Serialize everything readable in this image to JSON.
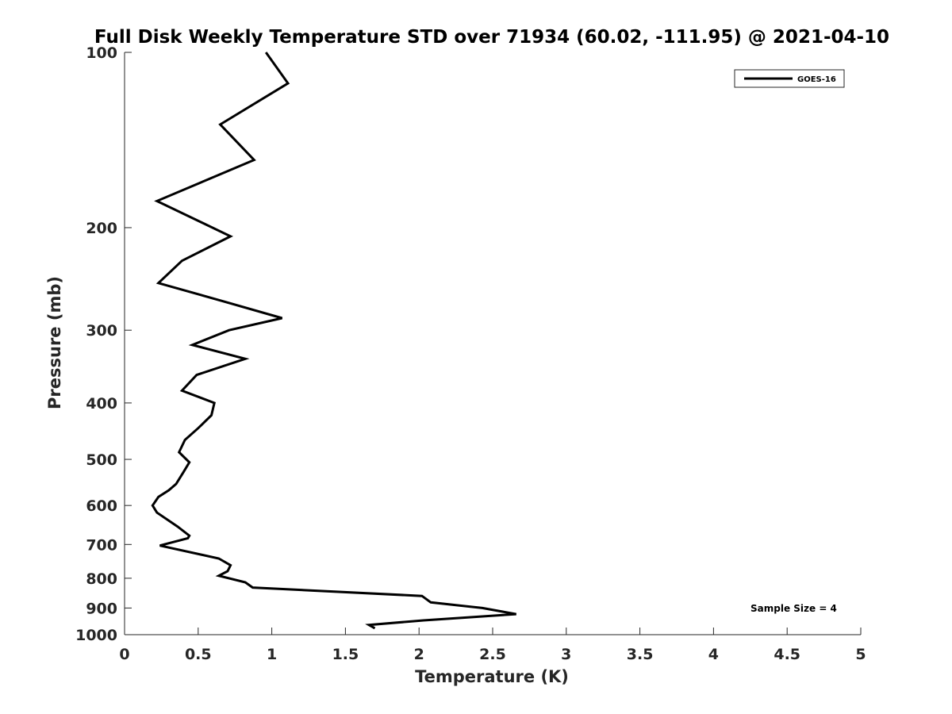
{
  "chart_data": {
    "type": "line",
    "title": "Full Disk Weekly Temperature STD over 71934 (60.02, -111.95) @ 2021-04-10",
    "xlabel": "Temperature (K)",
    "ylabel": "Pressure (mb)",
    "xlim": [
      0,
      5
    ],
    "ylim": [
      100,
      1000
    ],
    "y_scale": "log",
    "y_reversed": true,
    "grid": false,
    "x_ticks": [
      0,
      0.5,
      1,
      1.5,
      2,
      2.5,
      3,
      3.5,
      4,
      4.5,
      5
    ],
    "x_tick_labels": [
      "0",
      "0.5",
      "1",
      "1.5",
      "2",
      "2.5",
      "3",
      "3.5",
      "4",
      "4.5",
      "5"
    ],
    "y_ticks": [
      100,
      200,
      300,
      400,
      500,
      600,
      700,
      800,
      900,
      1000
    ],
    "y_tick_labels": [
      "100",
      "200",
      "300",
      "400",
      "500",
      "600",
      "700",
      "800",
      "900",
      "1000"
    ],
    "legend_position": "top-right",
    "annotation": "Sample Size = 4",
    "series": [
      {
        "name": "GOES-16",
        "color": "#000000",
        "x": [
          0.96,
          1.11,
          0.65,
          0.88,
          0.22,
          0.72,
          0.39,
          0.23,
          0.68,
          1.07,
          0.71,
          0.46,
          0.82,
          0.49,
          0.39,
          0.61,
          0.59,
          0.5,
          0.41,
          0.37,
          0.44,
          0.4,
          0.35,
          0.3,
          0.23,
          0.19,
          0.22,
          0.36,
          0.44,
          0.43,
          0.24,
          0.64,
          0.72,
          0.7,
          0.64,
          0.82,
          0.87,
          2.02,
          2.08,
          2.43,
          2.66,
          2.03,
          1.66,
          1.7
        ],
        "y": [
          100,
          113,
          133,
          153,
          180,
          207,
          228,
          249,
          268,
          286,
          300,
          318,
          336,
          358,
          381,
          400,
          420,
          442,
          463,
          486,
          506,
          526,
          551,
          565,
          580,
          600,
          617,
          652,
          676,
          683,
          703,
          740,
          760,
          778,
          792,
          813,
          830,
          858,
          880,
          900,
          922,
          945,
          962,
          975
        ]
      }
    ]
  }
}
